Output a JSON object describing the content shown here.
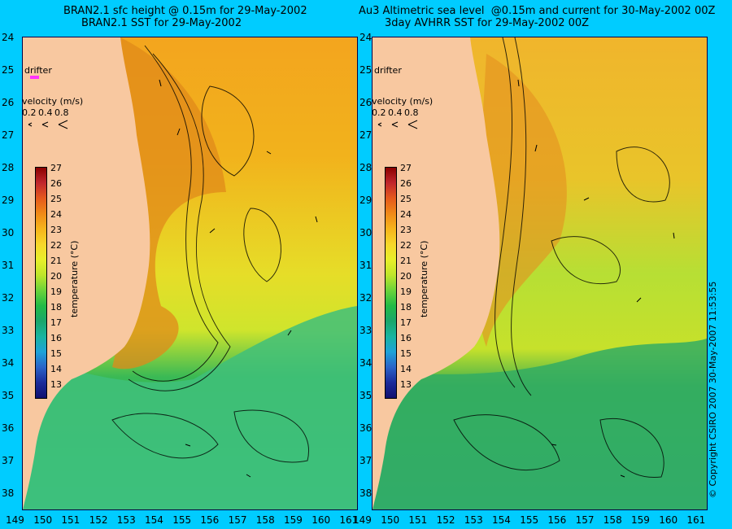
{
  "left_panel": {
    "title_line1": "BRAN2.1 sfc height @ 0.15m for 29-May-2002",
    "title_line2": "BRAN2.1 SST for 29-May-2002",
    "drifter_label": "drifter",
    "velocity_label": "velocity (m/s)",
    "velocity_scale": [
      "0.2",
      "0.4",
      "0.8"
    ]
  },
  "right_panel": {
    "title_line1": "Au3 Altimetric sea level  @0.15m and current for 30-May-2002 00Z",
    "title_line2": "3day AVHRR SST for 29-May-2002 00Z",
    "drifter_label": "drifter",
    "velocity_label": "velocity (m/s)",
    "velocity_scale": [
      "0.2",
      "0.4",
      "0.8"
    ]
  },
  "latitudes": [
    "24",
    "25",
    "26",
    "27",
    "28",
    "29",
    "30",
    "31",
    "32",
    "33",
    "34",
    "35",
    "36",
    "37",
    "38"
  ],
  "longitudes": [
    "149",
    "150",
    "151",
    "152",
    "153",
    "154",
    "155",
    "156",
    "157",
    "158",
    "159",
    "160",
    "161"
  ],
  "colorbar": {
    "title": "temperature (°C)",
    "ticks": [
      "27",
      "26",
      "25",
      "24",
      "23",
      "22",
      "21",
      "20",
      "19",
      "18",
      "17",
      "16",
      "15",
      "14",
      "13"
    ],
    "colors": [
      "#8b0000",
      "#c1272d",
      "#e55a1c",
      "#f08a18",
      "#f6b51c",
      "#f7d72a",
      "#e8ef2a",
      "#bfe52a",
      "#6bd33a",
      "#22bb46",
      "#1aa66b",
      "#19b4a0",
      "#1ea2d8",
      "#2a63c8",
      "#1b2b9a",
      "#101070"
    ]
  },
  "copyright": "© Copyright CSIRO 2007   30-May-2007 11:53:55",
  "colors": {
    "background": "#00ccff",
    "land": "#f8c8a0",
    "drifter": "#ff33ff"
  }
}
